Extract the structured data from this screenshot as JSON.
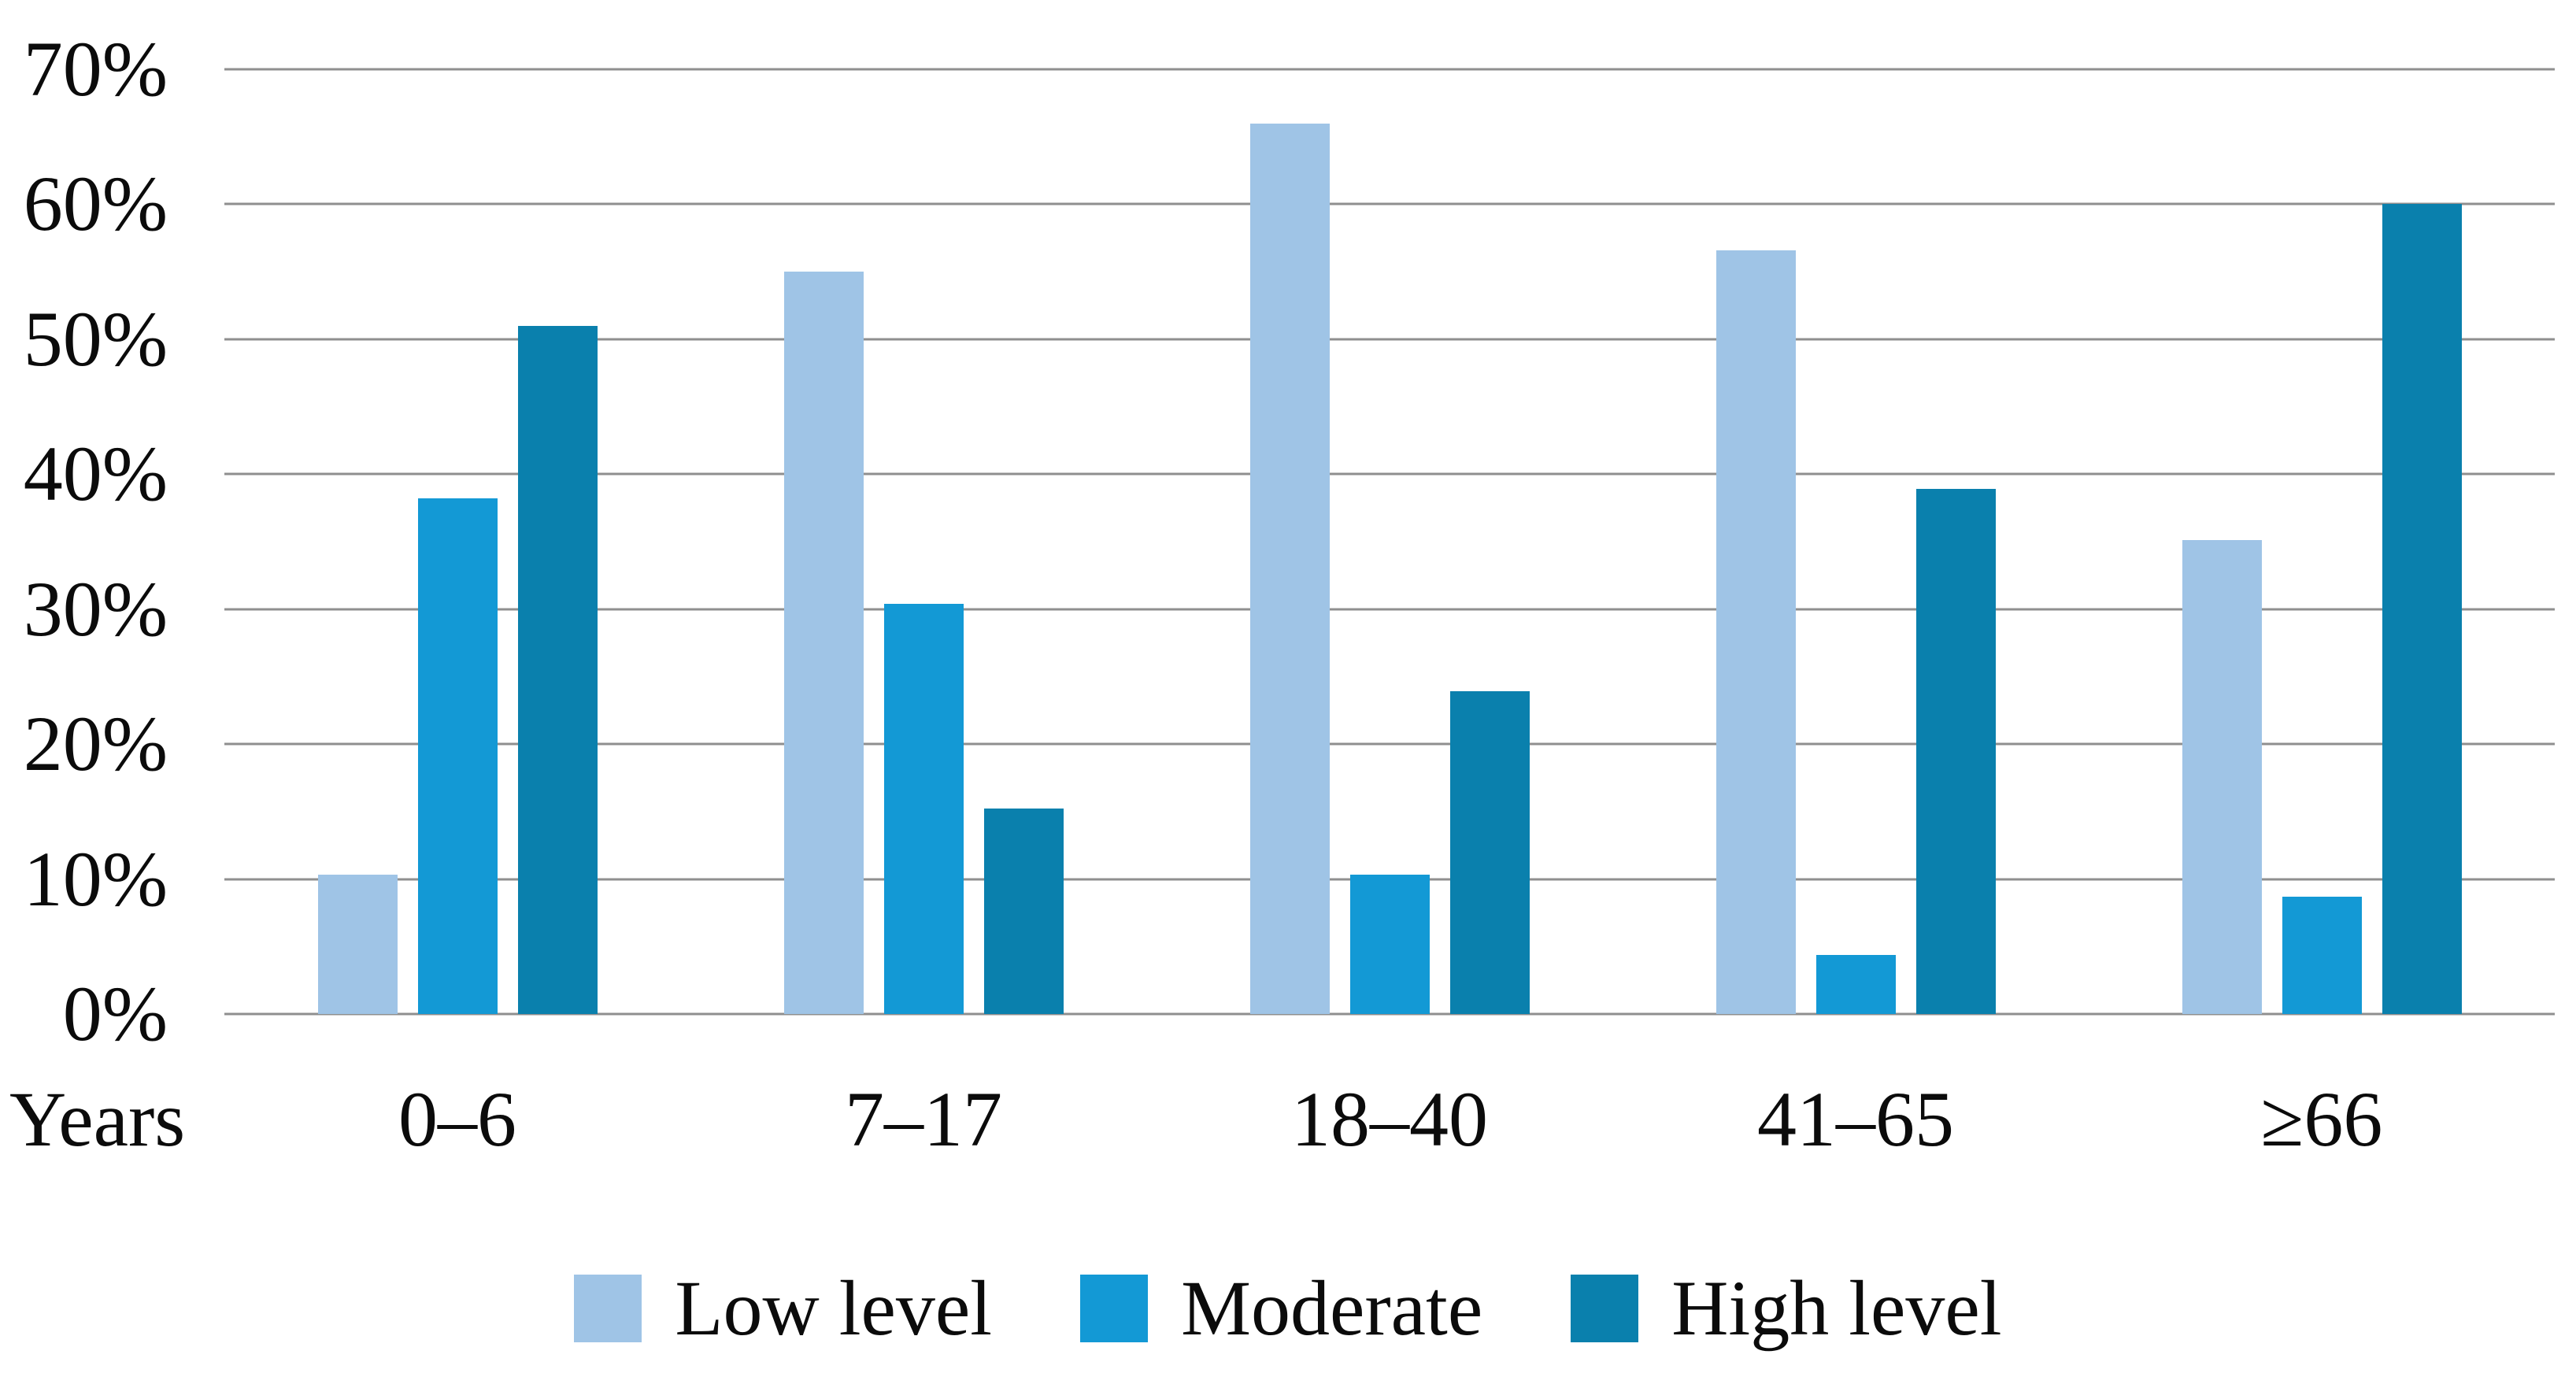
{
  "chart_data": {
    "type": "bar",
    "title": "",
    "xaxis_title": "Years",
    "categories": [
      "0–6",
      "7–17",
      "18–40",
      "41–65",
      "≥66"
    ],
    "series": [
      {
        "name": "Low level",
        "color": "#9fc4e6",
        "values": [
          10.3,
          55.0,
          66.0,
          56.6,
          35.1
        ]
      },
      {
        "name": "Moderate",
        "color": "#1399d5",
        "values": [
          38.2,
          30.4,
          10.3,
          4.4,
          8.7
        ]
      },
      {
        "name": "High level",
        "color": "#0a80ad",
        "values": [
          51.0,
          15.2,
          23.9,
          38.9,
          60.0
        ]
      }
    ],
    "ylim": [
      0,
      70
    ],
    "ytick_labels": [
      "0%",
      "10%",
      "20%",
      "30%",
      "40%",
      "50%",
      "60%",
      "70%"
    ],
    "grid": true,
    "gridline_color": "#8f8f8f",
    "legend_position": "bottom",
    "background": "#ffffff",
    "text_color": "#0b0b0b"
  }
}
